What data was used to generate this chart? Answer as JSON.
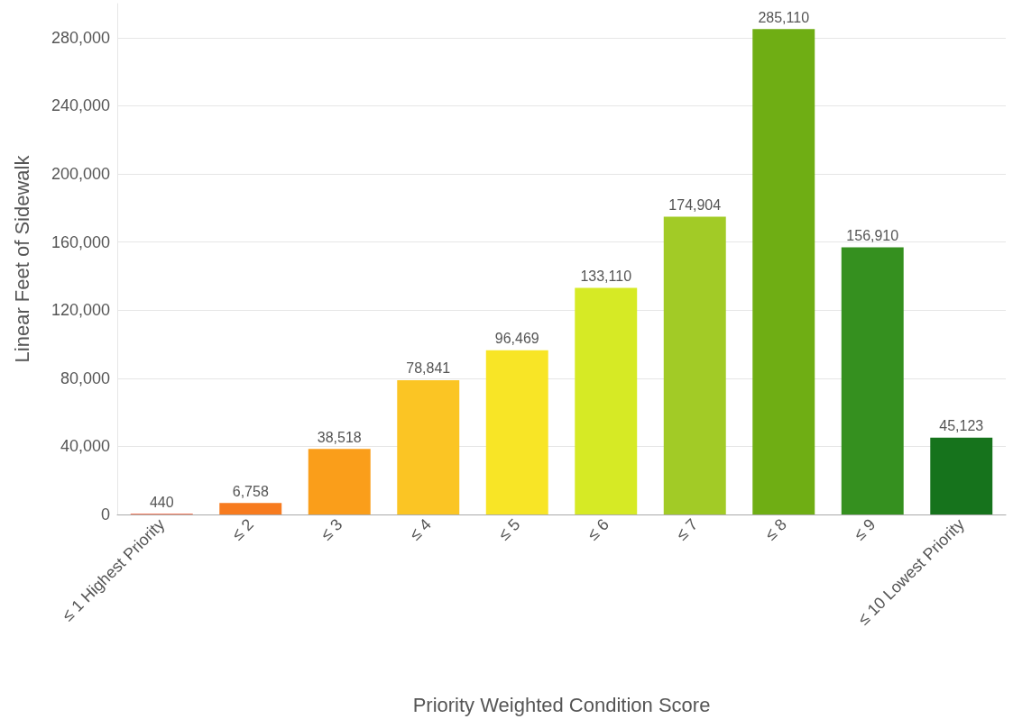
{
  "chart_data": {
    "type": "bar",
    "xlabel": "Priority Weighted Condition Score",
    "ylabel": "Linear Feet of Sidewalk",
    "categories": [
      "≤ 1 Highest Priority",
      "≤ 2",
      "≤ 3",
      "≤ 4",
      "≤ 5",
      "≤ 6",
      "≤ 7",
      "≤ 8",
      "≤ 9",
      "≤ 10 Lowest Priority"
    ],
    "values": [
      440,
      6758,
      38518,
      78841,
      96469,
      133110,
      174904,
      285110,
      156910,
      45123
    ],
    "value_labels": [
      "440",
      "6,758",
      "38,518",
      "78,841",
      "96,469",
      "133,110",
      "174,904",
      "285,110",
      "156,910",
      "45,123"
    ],
    "colors": [
      "#f0522a",
      "#f77b1f",
      "#fa9e1a",
      "#fbc524",
      "#f8e526",
      "#d6ea25",
      "#a2cb26",
      "#6fae14",
      "#35901f",
      "#16731c"
    ],
    "ylim": [
      0,
      300000
    ],
    "data_labels": true,
    "yticks": [
      0,
      {
        "value": 40000,
        "label": "40,000"
      },
      {
        "value": 80000,
        "label": "80,000"
      },
      {
        "value": 120000,
        "label": "120,000"
      },
      {
        "value": 160000,
        "label": "160,000"
      },
      {
        "value": 200000,
        "label": "200,000"
      },
      {
        "value": 240000,
        "label": "240,000"
      },
      {
        "value": 280000,
        "label": "280,000"
      }
    ],
    "grid": "y"
  }
}
